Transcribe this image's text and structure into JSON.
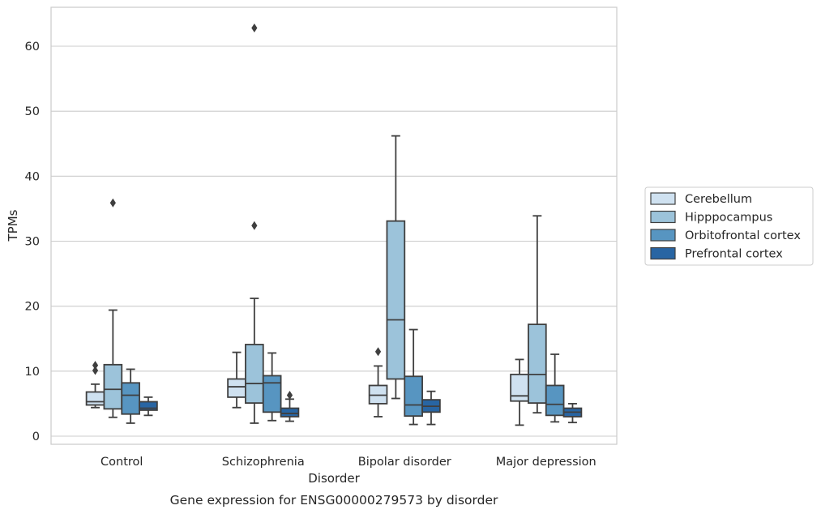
{
  "chart_data": {
    "type": "box",
    "title": "Gene expression for ENSG00000279573 by disorder",
    "xlabel": "Disorder",
    "ylabel": "TPMs",
    "ylim": [
      -1.2,
      66
    ],
    "yticks": [
      0,
      10,
      20,
      30,
      40,
      50,
      60
    ],
    "grid": true,
    "legend_placement": "right",
    "categories": [
      "Control",
      "Schizophrenia",
      "Bipolar disorder",
      "Major depression"
    ],
    "series": [
      {
        "name": "Cerebellum",
        "color": "#cfe1f0",
        "boxes": [
          {
            "whisker_low": 4.4,
            "q1": 4.8,
            "median": 5.3,
            "q3": 6.8,
            "whisker_high": 8.0,
            "outliers": [
              10.1,
              10.9
            ]
          },
          {
            "whisker_low": 4.4,
            "q1": 6.0,
            "median": 7.6,
            "q3": 8.8,
            "whisker_high": 12.9,
            "outliers": []
          },
          {
            "whisker_low": 3.0,
            "q1": 5.0,
            "median": 6.3,
            "q3": 7.8,
            "whisker_high": 10.8,
            "outliers": [
              13.0
            ]
          },
          {
            "whisker_low": 1.7,
            "q1": 5.4,
            "median": 6.2,
            "q3": 9.5,
            "whisker_high": 11.8,
            "outliers": []
          }
        ]
      },
      {
        "name": "Hipppocampus",
        "color": "#9cc3da",
        "boxes": [
          {
            "whisker_low": 2.9,
            "q1": 4.2,
            "median": 7.2,
            "q3": 11.0,
            "whisker_high": 19.4,
            "outliers": [
              35.9
            ]
          },
          {
            "whisker_low": 2.0,
            "q1": 5.1,
            "median": 8.1,
            "q3": 14.1,
            "whisker_high": 21.2,
            "outliers": [
              32.4,
              62.8
            ]
          },
          {
            "whisker_low": 5.8,
            "q1": 8.8,
            "median": 17.9,
            "q3": 33.1,
            "whisker_high": 46.2,
            "outliers": []
          },
          {
            "whisker_low": 3.6,
            "q1": 5.1,
            "median": 9.5,
            "q3": 17.2,
            "whisker_high": 33.9,
            "outliers": []
          }
        ]
      },
      {
        "name": "Orbitofrontal cortex",
        "color": "#5795c1",
        "boxes": [
          {
            "whisker_low": 2.0,
            "q1": 3.4,
            "median": 6.3,
            "q3": 8.2,
            "whisker_high": 10.3,
            "outliers": []
          },
          {
            "whisker_low": 2.4,
            "q1": 3.7,
            "median": 8.2,
            "q3": 9.3,
            "whisker_high": 12.8,
            "outliers": []
          },
          {
            "whisker_low": 1.8,
            "q1": 3.1,
            "median": 4.8,
            "q3": 9.2,
            "whisker_high": 16.4,
            "outliers": []
          },
          {
            "whisker_low": 2.2,
            "q1": 3.2,
            "median": 4.9,
            "q3": 7.8,
            "whisker_high": 12.6,
            "outliers": []
          }
        ]
      },
      {
        "name": "Prefrontal cortex",
        "color": "#2865a3",
        "boxes": [
          {
            "whisker_low": 3.2,
            "q1": 4.0,
            "median": 4.3,
            "q3": 5.3,
            "whisker_high": 6.0,
            "outliers": []
          },
          {
            "whisker_low": 2.3,
            "q1": 3.0,
            "median": 3.5,
            "q3": 4.3,
            "whisker_high": 5.7,
            "outliers": [
              6.3
            ]
          },
          {
            "whisker_low": 1.8,
            "q1": 3.7,
            "median": 4.6,
            "q3": 5.6,
            "whisker_high": 6.9,
            "outliers": []
          },
          {
            "whisker_low": 2.1,
            "q1": 3.0,
            "median": 3.7,
            "q3": 4.3,
            "whisker_high": 5.0,
            "outliers": []
          }
        ]
      }
    ]
  }
}
